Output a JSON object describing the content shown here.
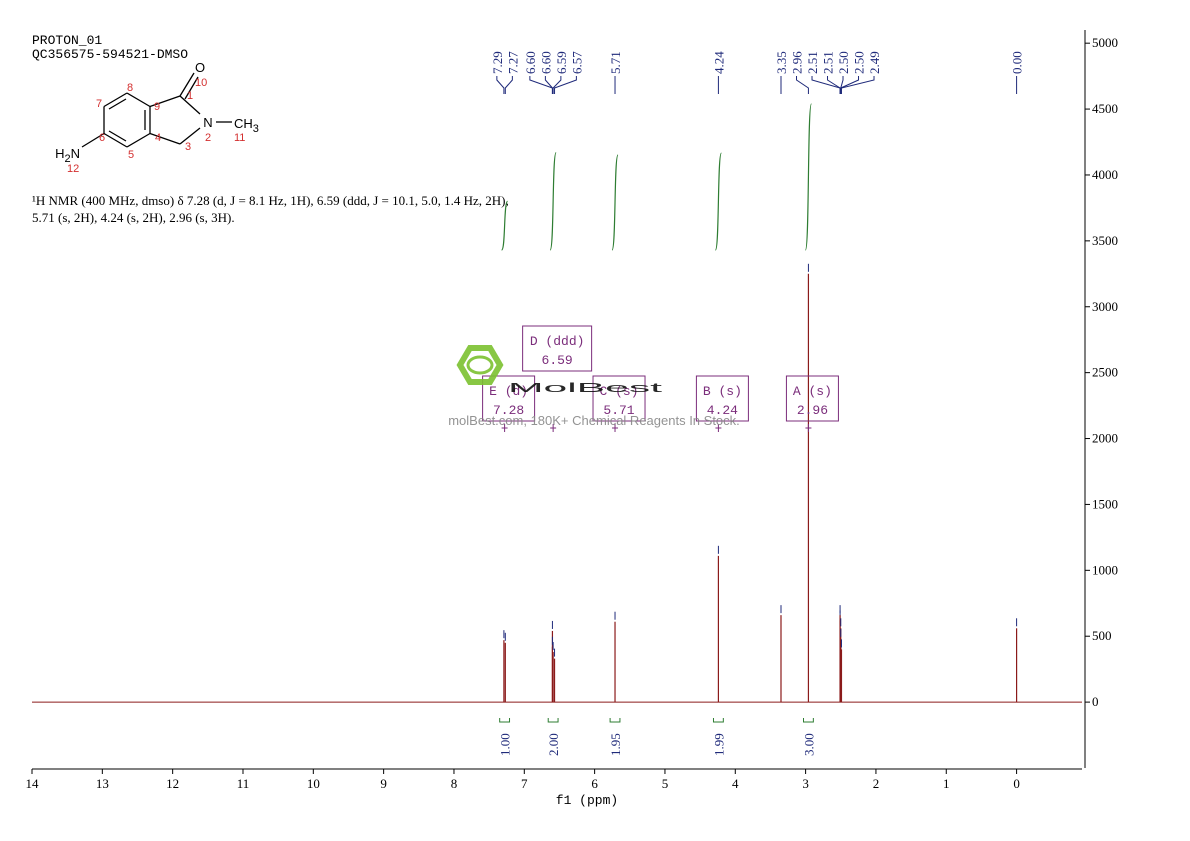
{
  "header": {
    "experiment": "PROTON_01",
    "sample": "QC356575-594521-DMSO"
  },
  "structure": {
    "groups": [
      {
        "parts": [
          "O"
        ]
      },
      {
        "parts": [
          "N"
        ]
      },
      {
        "parts": [
          "CH",
          "3"
        ]
      },
      {
        "parts": [
          "H",
          "2",
          "N"
        ]
      }
    ],
    "numbers": [
      "1",
      "2",
      "3",
      "4",
      "5",
      "6",
      "7",
      "8",
      "9",
      "10",
      "11",
      "12"
    ]
  },
  "description": [
    "¹H NMR (400 MHz, dmso) δ 7.28 (d, J = 8.1 Hz, 1H), 6.59 (ddd, J = 10.1, 5.0, 1.4 Hz, 2H),",
    "5.71 (s, 2H), 4.24 (s, 2H), 2.96 (s, 3H)."
  ],
  "watermark": {
    "brand": "MolBest",
    "tagline": "molBest.com, 180K+ Chemical Reagents In Stock."
  },
  "chart_data": {
    "type": "spectrum",
    "x_label": "f1 (ppm)",
    "xlim": [
      14,
      -0.93
    ],
    "xticks": [
      14,
      13,
      12,
      11,
      10,
      9,
      8,
      7,
      6,
      5,
      4,
      3,
      2,
      1,
      0
    ],
    "ylim": [
      -500,
      5100
    ],
    "yticks": [
      0,
      500,
      1000,
      1500,
      2000,
      2500,
      3000,
      3500,
      4000,
      4500,
      5000
    ],
    "color": "#8b1a1a",
    "label_color": "#1f2a7a",
    "integral_color": "#2e7d32",
    "multiplet_color": "#7b2d7b",
    "peaks": {
      "x": [
        7.29,
        7.27,
        6.6,
        6.6,
        6.59,
        6.57,
        5.71,
        4.24,
        3.35,
        2.96,
        2.51,
        2.51,
        2.5,
        2.5,
        2.49,
        0.0
      ],
      "values": [
        470,
        450,
        540,
        420,
        380,
        330,
        610,
        1110,
        660,
        3250,
        620,
        660,
        560,
        480,
        400,
        560
      ],
      "x_labels": [
        "7.29",
        "7.27",
        "6.60",
        "6.60",
        "6.59",
        "6.57",
        "5.71",
        "4.24",
        "3.35",
        "2.96",
        "2.51",
        "2.51",
        "2.50",
        "2.50",
        "2.49",
        "0.00"
      ]
    },
    "multiplets": {
      "names": [
        "E (d)",
        "D (ddd)",
        "C (s)",
        "B (s)",
        "A (s)"
      ],
      "x": [
        7.28,
        6.59,
        5.71,
        4.24,
        2.96
      ]
    },
    "integrals": {
      "x": [
        7.28,
        6.59,
        5.71,
        4.24,
        2.96
      ],
      "values": [
        1.0,
        2.0,
        1.95,
        1.99,
        3.0
      ],
      "value_labels": [
        "1.00",
        "2.00",
        "1.95",
        "1.99",
        "3.00"
      ]
    }
  }
}
